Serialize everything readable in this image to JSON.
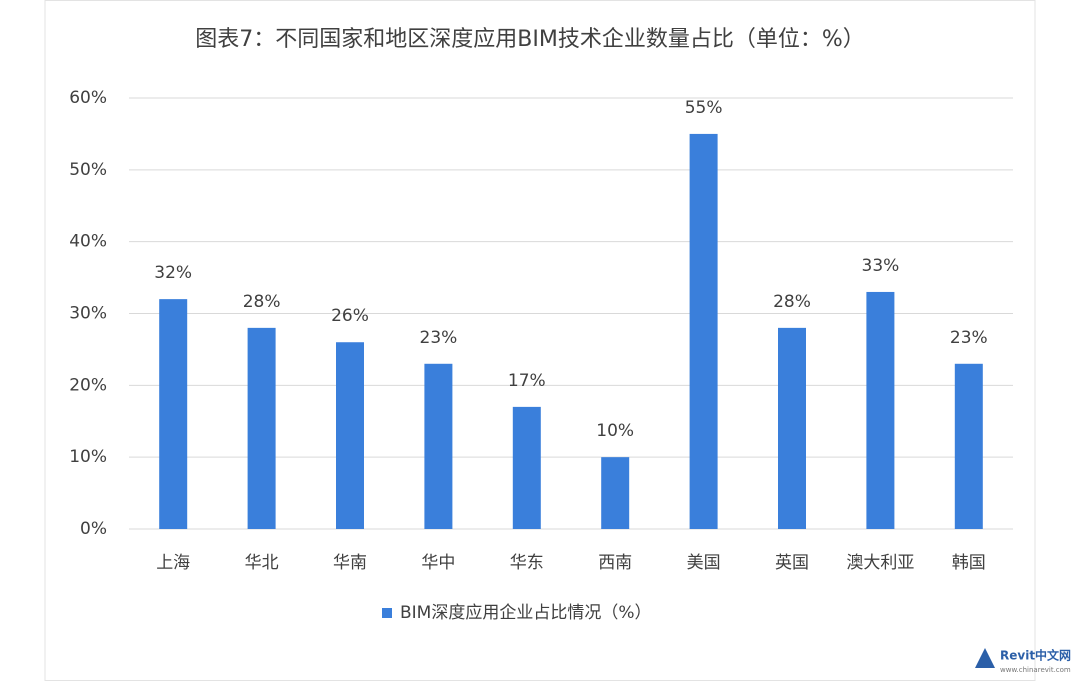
{
  "chart_data": {
    "type": "bar",
    "title": "图表7：不同国家和地区深度应用BIM技术企业数量占比（单位：%）",
    "categories": [
      "上海",
      "华北",
      "华南",
      "华中",
      "华东",
      "西南",
      "美国",
      "英国",
      "澳大利亚",
      "韩国"
    ],
    "series": [
      {
        "name": "BIM深度应用企业占比情况（%）",
        "color": "#3a7fdb",
        "values": [
          32,
          28,
          26,
          23,
          17,
          10,
          55,
          28,
          33,
          23
        ],
        "value_labels": [
          "32%",
          "28%",
          "26%",
          "23%",
          "17%",
          "10%",
          "55%",
          "28%",
          "33%",
          "23%"
        ]
      }
    ],
    "ylim": [
      0,
      60
    ],
    "yticks": [
      {
        "value": 0,
        "label": "0%"
      },
      {
        "value": 10,
        "label": "10%"
      },
      {
        "value": 20,
        "label": "20%"
      },
      {
        "value": 30,
        "label": "30%"
      },
      {
        "value": 40,
        "label": "40%"
      },
      {
        "value": 50,
        "label": "50%"
      },
      {
        "value": 60,
        "label": "60%"
      }
    ],
    "grid": true,
    "legend": "bottom"
  },
  "watermark": {
    "name": "Revit中文网",
    "url": "www.chinarevit.com"
  }
}
